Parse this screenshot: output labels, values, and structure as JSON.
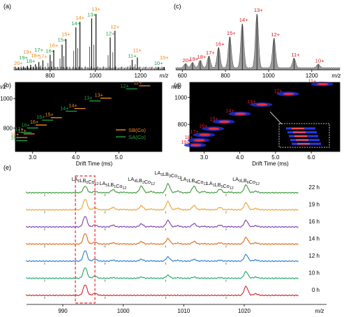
{
  "chart_data": [
    {
      "panel": "(a)",
      "type": "line",
      "xlabel": "m/z",
      "x_ticks": [
        800,
        1000,
        1200
      ],
      "xlim": [
        640,
        1310
      ],
      "colors": {
        "orange": "#ef8b1f",
        "green": "#1fa34a",
        "trace": "#111111"
      },
      "peaks": [
        {
          "label": "20+",
          "mz": 660,
          "h": 0.05,
          "color": "orange"
        },
        {
          "label": "19+",
          "mz": 682,
          "h": 0.06,
          "color": "green"
        },
        {
          "label": "19+",
          "mz": 700,
          "h": 0.07,
          "color": "orange"
        },
        {
          "label": "18+",
          "mz": 714,
          "h": 0.09,
          "color": "green"
        },
        {
          "label": "18+",
          "mz": 735,
          "h": 0.1,
          "color": "orange"
        },
        {
          "label": "17+",
          "mz": 750,
          "h": 0.14,
          "color": "green"
        },
        {
          "label": "17+",
          "mz": 768,
          "h": 0.17,
          "color": "orange"
        },
        {
          "label": "16+",
          "mz": 800,
          "h": 0.27,
          "color": "green"
        },
        {
          "label": "16+",
          "mz": 816,
          "h": 0.35,
          "color": "orange"
        },
        {
          "label": "15+",
          "mz": 853,
          "h": 0.45,
          "color": "green"
        },
        {
          "label": "15+",
          "mz": 870,
          "h": 0.55,
          "color": "orange"
        },
        {
          "label": "14+",
          "mz": 914,
          "h": 0.76,
          "color": "green"
        },
        {
          "label": "14+",
          "mz": 932,
          "h": 0.86,
          "color": "orange"
        },
        {
          "label": "13+",
          "mz": 984,
          "h": 0.92,
          "color": "green"
        },
        {
          "label": "13+",
          "mz": 1003,
          "h": 1.0,
          "color": "orange"
        },
        {
          "label": "12+",
          "mz": 1066,
          "h": 0.58,
          "color": "green"
        },
        {
          "label": "12+",
          "mz": 1087,
          "h": 0.7,
          "color": "orange"
        },
        {
          "label": "11+",
          "mz": 1163,
          "h": 0.18,
          "color": "green"
        },
        {
          "label": "11+",
          "mz": 1186,
          "h": 0.22,
          "color": "orange"
        },
        {
          "label": "10+",
          "mz": 1280,
          "h": 0.05,
          "color": "green"
        },
        {
          "label": "10+",
          "mz": 1305,
          "h": 0.05,
          "color": "orange"
        }
      ]
    },
    {
      "panel": "(b)",
      "type": "heatmap",
      "xlabel": "Drift Time (ms)",
      "ylabel": "m/z",
      "x_ticks": [
        3.0,
        4.0,
        5.0
      ],
      "y_ticks": [
        800,
        1000
      ],
      "xlim": [
        2.6,
        6.0
      ],
      "ylim": [
        640,
        1110
      ],
      "legend": [
        {
          "name": "SB(Co)",
          "color": "#ef8b1f"
        },
        {
          "name": "SA(Co)",
          "color": "#1fa34a"
        }
      ],
      "legend_position": "bottom-right",
      "charge_labels": [
        {
          "label": "18+",
          "dt": 2.75,
          "mz": 735,
          "color": "orange"
        },
        {
          "label": "18+",
          "dt": 2.75,
          "mz": 714,
          "color": "green"
        },
        {
          "label": "17+",
          "dt": 2.85,
          "mz": 770,
          "color": "green"
        },
        {
          "label": "17+",
          "dt": 2.92,
          "mz": 760,
          "color": "orange"
        },
        {
          "label": "16+",
          "dt": 3.2,
          "mz": 820,
          "color": "orange"
        },
        {
          "label": "16+",
          "dt": 3.0,
          "mz": 800,
          "color": "green"
        },
        {
          "label": "15+",
          "dt": 3.55,
          "mz": 870,
          "color": "orange"
        },
        {
          "label": "15+",
          "dt": 3.35,
          "mz": 853,
          "color": "green"
        },
        {
          "label": "14+",
          "dt": 4.1,
          "mz": 932,
          "color": "orange"
        },
        {
          "label": "14+",
          "dt": 3.9,
          "mz": 914,
          "color": "green"
        },
        {
          "label": "13+",
          "dt": 4.7,
          "mz": 1003,
          "color": "orange"
        },
        {
          "label": "13+",
          "dt": 4.45,
          "mz": 984,
          "color": "green"
        },
        {
          "label": "12+",
          "dt": 5.6,
          "mz": 1087,
          "color": "orange"
        },
        {
          "label": "12+",
          "dt": 5.3,
          "mz": 1066,
          "color": "green"
        }
      ]
    },
    {
      "panel": "(c)",
      "type": "line",
      "xlabel": "m/z",
      "x_ticks": [
        600,
        800,
        1000,
        1200
      ],
      "xlim": [
        570,
        1330
      ],
      "colors": {
        "label": "#e01b1b",
        "trace": "#555555"
      },
      "peaks": [
        {
          "label": "20+",
          "mz": 615,
          "h": 0.08
        },
        {
          "label": "19+",
          "mz": 647,
          "h": 0.1
        },
        {
          "label": "18+",
          "mz": 683,
          "h": 0.14
        },
        {
          "label": "17+",
          "mz": 723,
          "h": 0.22
        },
        {
          "label": "16+",
          "mz": 768,
          "h": 0.38
        },
        {
          "label": "15+",
          "mz": 820,
          "h": 0.58
        },
        {
          "label": "14+",
          "mz": 878,
          "h": 0.82
        },
        {
          "label": "13+",
          "mz": 946,
          "h": 1.0
        },
        {
          "label": "12+",
          "mz": 1025,
          "h": 0.55
        },
        {
          "label": "11+",
          "mz": 1118,
          "h": 0.18
        },
        {
          "label": "10+",
          "mz": 1230,
          "h": 0.07
        }
      ]
    },
    {
      "panel": "(d)",
      "type": "heatmap",
      "xlabel": "Drift Time (ms)",
      "ylabel": "m/z",
      "x_ticks": [
        3.0,
        4.0,
        5.0,
        6.0
      ],
      "y_ticks": [
        800,
        1000
      ],
      "xlim": [
        2.6,
        6.8
      ],
      "ylim": [
        600,
        1110
      ],
      "label_color": "#e01b1b",
      "charge_labels": [
        {
          "label": "19+",
          "dt": 2.75,
          "mz": 647
        },
        {
          "label": "18+",
          "dt": 2.85,
          "mz": 683
        },
        {
          "label": "17+",
          "dt": 3.0,
          "mz": 723
        },
        {
          "label": "16+",
          "dt": 3.25,
          "mz": 768
        },
        {
          "label": "15+",
          "dt": 3.55,
          "mz": 820
        },
        {
          "label": "14+",
          "dt": 4.0,
          "mz": 878
        },
        {
          "label": "13+",
          "dt": 4.6,
          "mz": 946
        },
        {
          "label": "12+",
          "dt": 5.35,
          "mz": 1025
        },
        {
          "label": "11+",
          "dt": 6.3,
          "mz": 1098
        }
      ]
    },
    {
      "panel": "(e)",
      "type": "line",
      "xlabel": "m/z",
      "x_ticks": [
        990,
        1000,
        1010,
        1020
      ],
      "xlim": [
        984,
        1029
      ],
      "species": [
        {
          "label": "LA6LB0Co12",
          "mz": 993.7
        },
        {
          "label": "LA5LB1Co12",
          "mz": 998.3
        },
        {
          "label": "LA4LB2Co12",
          "mz": 1003.0
        },
        {
          "label": "LA3LB3Co12",
          "mz": 1007.4
        },
        {
          "label": "LA2LB4Co12",
          "mz": 1011.7
        },
        {
          "label": "LA1LB5Co12",
          "mz": 1016.0
        },
        {
          "label": "LA0LB6Co12",
          "mz": 1020.3
        }
      ],
      "series": [
        {
          "name": "22 h",
          "color": "#3a9a3a",
          "values": [
            0.55,
            0.25,
            0.55,
            0.75,
            0.55,
            0.3,
            0.65
          ]
        },
        {
          "name": "19 h",
          "color": "#f0a030",
          "values": [
            0.9,
            0.2,
            0.35,
            0.7,
            0.35,
            0.2,
            0.6
          ]
        },
        {
          "name": "16 h",
          "color": "#7e3fb0",
          "values": [
            0.9,
            0.15,
            0.25,
            0.55,
            0.28,
            0.15,
            0.55
          ]
        },
        {
          "name": "14 h",
          "color": "#e06b1e",
          "values": [
            0.9,
            0.1,
            0.2,
            0.45,
            0.22,
            0.1,
            0.55
          ]
        },
        {
          "name": "12 h",
          "color": "#2a7fd0",
          "values": [
            0.9,
            0.08,
            0.15,
            0.35,
            0.15,
            0.08,
            0.55
          ]
        },
        {
          "name": "10 h",
          "color": "#22aa66",
          "values": [
            0.9,
            0.05,
            0.1,
            0.25,
            0.1,
            0.05,
            0.55
          ]
        },
        {
          "name": "0 h",
          "color": "#d02828",
          "values": [
            0.9,
            0.0,
            0.0,
            0.0,
            0.0,
            0.0,
            0.75
          ]
        }
      ],
      "highlight_box": {
        "label": "LA6LB0Co12",
        "color": "#ee2a2a"
      }
    }
  ]
}
